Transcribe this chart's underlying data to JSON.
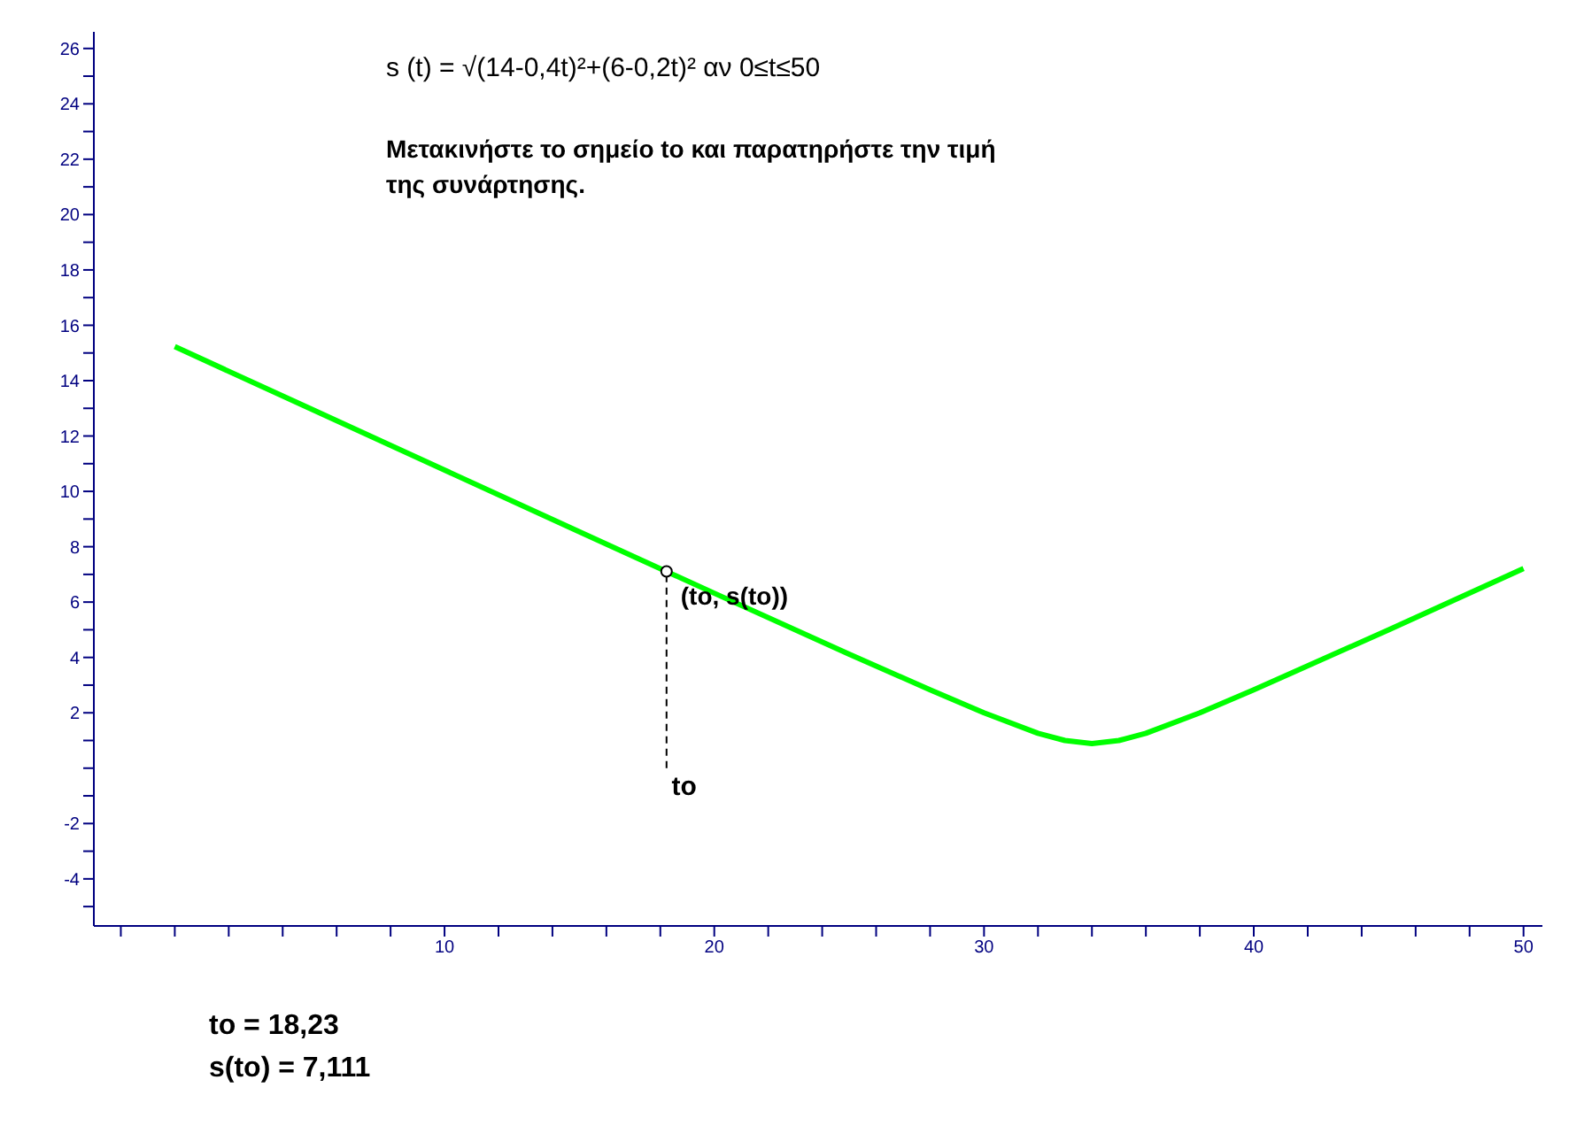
{
  "chart_data": {
    "type": "line",
    "title": "s (t) = √(14-0,4t)²+(6-0,2t)²     αν     0≤t≤50",
    "subtitle": "Μετακινήστε το σημείο to και παρατηρήστε την τιμή της συνάρτησης.",
    "x": [
      0,
      5,
      10,
      15,
      20,
      25,
      28,
      30,
      32,
      33,
      34,
      35,
      36,
      38,
      40,
      45,
      50
    ],
    "series": [
      {
        "color": "#00ff00",
        "values": [
          15.23,
          13,
          10.77,
          8.54,
          6.32,
          4.12,
          2.83,
          2,
          1.26,
          1,
          0.89,
          1,
          1.26,
          2,
          2.83,
          5,
          7.21
        ]
      }
    ],
    "xlim": [
      -3,
      50.7
    ],
    "ylim": [
      -5.7,
      26.6
    ],
    "xticks": [
      {
        "value": -2,
        "label": null
      },
      {
        "value": 0,
        "label": null
      },
      {
        "value": 2,
        "label": null
      },
      {
        "value": 4,
        "label": null
      },
      {
        "value": 6,
        "label": null
      },
      {
        "value": 8,
        "label": null
      },
      10,
      {
        "value": 12,
        "label": null
      },
      {
        "value": 14,
        "label": null
      },
      {
        "value": 16,
        "label": null
      },
      {
        "value": 18,
        "label": null
      },
      20,
      {
        "value": 22,
        "label": null
      },
      {
        "value": 24,
        "label": null
      },
      {
        "value": 26,
        "label": null
      },
      {
        "value": 28,
        "label": null
      },
      30,
      {
        "value": 32,
        "label": null
      },
      {
        "value": 34,
        "label": null
      },
      {
        "value": 36,
        "label": null
      },
      {
        "value": 38,
        "label": null
      },
      40,
      {
        "value": 42,
        "label": null
      },
      {
        "value": 44,
        "label": null
      },
      {
        "value": 46,
        "label": null
      },
      {
        "value": 48,
        "label": null
      },
      50
    ],
    "yticks": [
      {
        "value": -5,
        "label": null
      },
      -4,
      {
        "value": -3,
        "label": null
      },
      -2,
      {
        "value": -1,
        "label": null
      },
      {
        "value": 0,
        "label": null
      },
      {
        "value": 1,
        "label": null
      },
      2,
      {
        "value": 3,
        "label": null
      },
      4,
      {
        "value": 5,
        "label": null
      },
      6,
      {
        "value": 7,
        "label": null
      },
      8,
      {
        "value": 9,
        "label": null
      },
      10,
      {
        "value": 11,
        "label": null
      },
      12,
      {
        "value": 13,
        "label": null
      },
      14,
      {
        "value": 15,
        "label": null
      },
      16,
      {
        "value": 17,
        "label": null
      },
      18,
      {
        "value": 19,
        "label": null
      },
      20,
      {
        "value": 21,
        "label": null
      },
      22,
      {
        "value": 23,
        "label": null
      },
      24,
      {
        "value": 25,
        "label": null
      },
      26
    ],
    "ref_lines": [
      {
        "axis": "x",
        "value": 18.23,
        "label": "to",
        "color": "#000000",
        "line_style": "dashed"
      }
    ],
    "annotations": [
      {
        "text": "(to, s(to))",
        "x": 18.23,
        "y": 7.11
      },
      "to = 18,23",
      "s(to) = 7,111"
    ],
    "marker": "none",
    "line_style": "solid"
  }
}
